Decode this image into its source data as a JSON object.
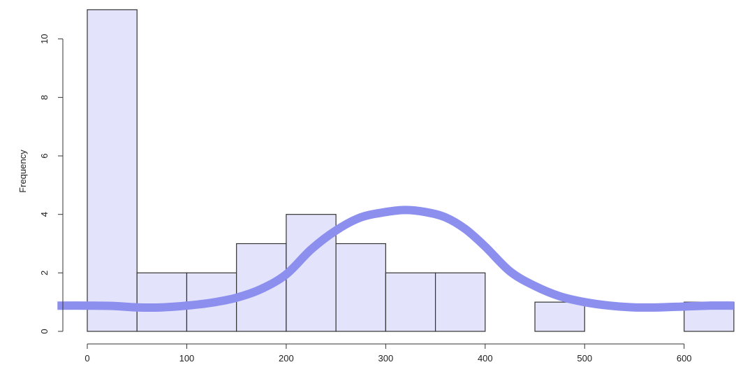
{
  "chart_data": {
    "type": "bar",
    "subtype": "histogram",
    "title": "",
    "xlabel": "",
    "ylabel": "Frequency",
    "bin_width": 50,
    "bins": [
      {
        "x0": 0,
        "x1": 50,
        "count": 11
      },
      {
        "x0": 50,
        "x1": 100,
        "count": 2
      },
      {
        "x0": 100,
        "x1": 150,
        "count": 2
      },
      {
        "x0": 150,
        "x1": 200,
        "count": 3
      },
      {
        "x0": 200,
        "x1": 250,
        "count": 4
      },
      {
        "x0": 250,
        "x1": 300,
        "count": 3
      },
      {
        "x0": 300,
        "x1": 350,
        "count": 2
      },
      {
        "x0": 350,
        "x1": 400,
        "count": 2
      },
      {
        "x0": 400,
        "x1": 450,
        "count": 0
      },
      {
        "x0": 450,
        "x1": 500,
        "count": 1
      },
      {
        "x0": 500,
        "x1": 550,
        "count": 0
      },
      {
        "x0": 550,
        "x1": 600,
        "count": 0
      },
      {
        "x0": 600,
        "x1": 650,
        "count": 1
      }
    ],
    "xlim": [
      0,
      650
    ],
    "ylim": [
      0,
      11
    ],
    "xticks": [
      0,
      100,
      200,
      300,
      400,
      500,
      600
    ],
    "yticks": [
      0,
      2,
      4,
      6,
      8,
      10
    ],
    "overlay_curve": {
      "type": "line",
      "color": "#8C8FEE",
      "points": [
        [
          -30,
          0.88
        ],
        [
          0,
          0.88
        ],
        [
          25,
          0.87
        ],
        [
          50,
          0.82
        ],
        [
          75,
          0.82
        ],
        [
          100,
          0.88
        ],
        [
          125,
          0.98
        ],
        [
          150,
          1.15
        ],
        [
          175,
          1.45
        ],
        [
          200,
          1.95
        ],
        [
          225,
          2.8
        ],
        [
          250,
          3.45
        ],
        [
          275,
          3.9
        ],
        [
          300,
          4.08
        ],
        [
          320,
          4.15
        ],
        [
          340,
          4.08
        ],
        [
          360,
          3.9
        ],
        [
          380,
          3.5
        ],
        [
          400,
          2.9
        ],
        [
          425,
          2.05
        ],
        [
          450,
          1.55
        ],
        [
          475,
          1.2
        ],
        [
          500,
          1.0
        ],
        [
          525,
          0.88
        ],
        [
          550,
          0.82
        ],
        [
          575,
          0.82
        ],
        [
          600,
          0.85
        ],
        [
          625,
          0.88
        ],
        [
          650,
          0.88
        ]
      ]
    },
    "colors": {
      "bar_fill": "#E3E4FB",
      "bar_stroke": "#333333",
      "axis": "#333333"
    },
    "grid": false,
    "legend": "none"
  }
}
